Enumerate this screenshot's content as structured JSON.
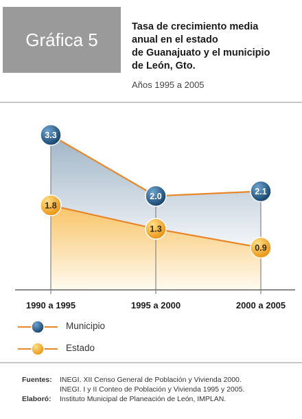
{
  "badge": "Gráfica 5",
  "title_lines": [
    "Tasa de crecimiento media",
    "anual en el estado",
    "de Guanajuato y el municipio",
    "de León, Gto."
  ],
  "subtitle": "Años 1995 a 2005",
  "chart_data": {
    "type": "line",
    "categories": [
      "1990 a 1995",
      "1995 a 2000",
      "2000 a 2005"
    ],
    "series": [
      {
        "name": "Municipio",
        "values": [
          3.3,
          2.0,
          2.1
        ],
        "color": "#1f5a86",
        "value_labels": [
          "3.3",
          "2.0",
          "2.1"
        ]
      },
      {
        "name": "Estado",
        "values": [
          1.8,
          1.3,
          0.9
        ],
        "color": "#f5a81e",
        "value_labels": [
          "1.8",
          "1.3",
          "0.9"
        ]
      }
    ],
    "line_color": "#e8872a",
    "ylim": [
      0,
      3.6
    ],
    "area_fill": true,
    "grid": false,
    "legend_position": "bottom-left"
  },
  "legend": [
    {
      "label": "Municipio",
      "color": "#1f5a86"
    },
    {
      "label": "Estado",
      "color": "#f5a81e"
    }
  ],
  "sources": {
    "fuentes_label": "Fuentes:",
    "fuentes_lines": [
      "INEGI. XII Censo General de Población y Vivienda 2000.",
      "INEGI. I y II Conteo de Población y Vivienda 1995 y 2005."
    ],
    "elaboro_label": "Elaboró:",
    "elaboro_text": "Instituto Municipal de Planeación de León, IMPLAN."
  }
}
